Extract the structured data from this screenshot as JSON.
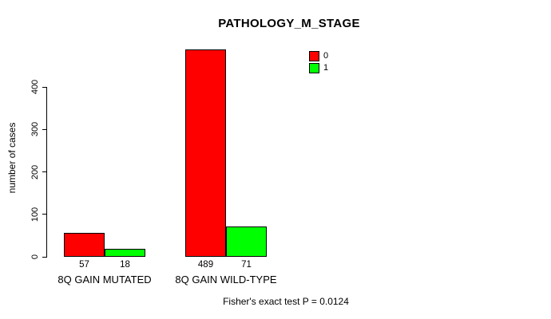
{
  "chart_data": {
    "type": "bar",
    "title": "PATHOLOGY_M_STAGE",
    "ylabel": "number of cases",
    "xlabel": "",
    "ylim": [
      0,
      400
    ],
    "yticks": [
      0,
      100,
      200,
      300,
      400
    ],
    "grid": false,
    "categories": [
      "8Q GAIN MUTATED",
      "8Q GAIN WILD-TYPE"
    ],
    "series": [
      {
        "name": "0",
        "color": "#FF0000",
        "values": [
          57,
          489
        ]
      },
      {
        "name": "1",
        "color": "#00FF00",
        "values": [
          18,
          71
        ]
      }
    ],
    "bar_value_labels": [
      [
        57,
        489
      ],
      [
        18,
        71
      ]
    ],
    "legend": {
      "position": "top-right",
      "entries": [
        {
          "label": "0",
          "color": "#FF0000"
        },
        {
          "label": "1",
          "color": "#00FF00"
        }
      ]
    },
    "annotation": "Fisher's exact test P = 0.0124"
  },
  "colors": {
    "background": "#FFFFFF",
    "axis": "#000000",
    "bar_border": "#000000",
    "series0": "#FF0000",
    "series1": "#00FF00"
  }
}
